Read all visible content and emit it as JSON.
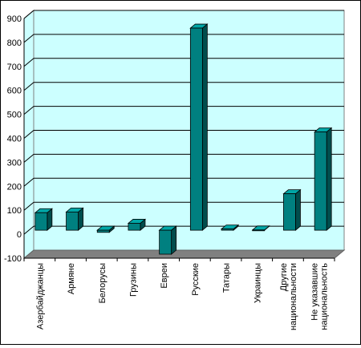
{
  "chart_data": {
    "type": "bar",
    "categories": [
      "Азербайджанцы",
      "Армяне",
      "Белорусы",
      "Грузины",
      "Евреи",
      "Русские",
      "Татары",
      "Украинцы",
      "Другие национальности",
      "Не указавшие национальность"
    ],
    "category_lines": [
      [
        "Азербайджанцы"
      ],
      [
        "Армяне"
      ],
      [
        "Белорусы"
      ],
      [
        "Грузины"
      ],
      [
        "Евреи"
      ],
      [
        "Русские"
      ],
      [
        "Татары"
      ],
      [
        "Украинцы"
      ],
      [
        "Другие",
        "национальности"
      ],
      [
        "Не указавшие",
        "национальность"
      ]
    ],
    "values": [
      73,
      76,
      -9,
      29,
      -100,
      843,
      5,
      1,
      152,
      410
    ],
    "yticks": [
      "-100",
      "0",
      "100",
      "200",
      "300",
      "400",
      "500",
      "600",
      "700",
      "800",
      "900"
    ],
    "ylim": [
      -100,
      900
    ],
    "title": "",
    "xlabel": "",
    "ylabel": "",
    "grid": true,
    "legend": "none",
    "colors": {
      "plot_background": "#ccffff",
      "floor": "#808080",
      "bar_front": "#008080",
      "bar_side": "#004d4d",
      "bar_top": "#00a6a6",
      "gridline": "#000000"
    }
  }
}
